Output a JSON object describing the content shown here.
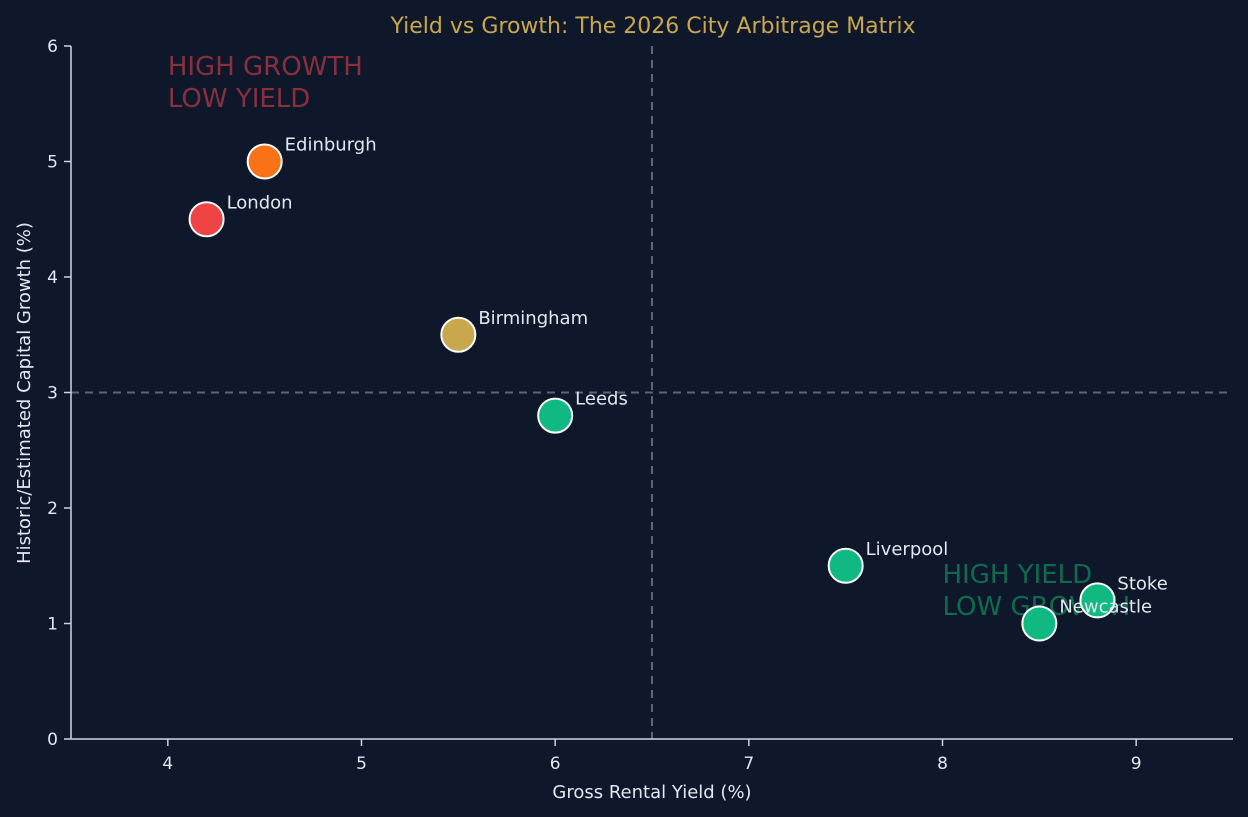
{
  "chart_data": {
    "type": "scatter",
    "title": "Yield vs Growth: The 2026 City Arbitrage Matrix",
    "xlabel": "Gross Rental Yield (%)",
    "ylabel": "Historic/Estimated Capital Growth (%)",
    "xlim": [
      3.5,
      9.5
    ],
    "ylim": [
      0,
      6
    ],
    "xticks": [
      4,
      5,
      6,
      7,
      8,
      9
    ],
    "yticks": [
      0,
      1,
      2,
      3,
      4,
      5,
      6
    ],
    "grid": false,
    "reference_lines": {
      "x": 6.5,
      "y": 3
    },
    "points": [
      {
        "label": "London",
        "x": 4.2,
        "y": 4.5,
        "color": "#ef4444"
      },
      {
        "label": "Edinburgh",
        "x": 4.5,
        "y": 5.0,
        "color": "#f97316"
      },
      {
        "label": "Birmingham",
        "x": 5.5,
        "y": 3.5,
        "color": "#c9a74c"
      },
      {
        "label": "Leeds",
        "x": 6.0,
        "y": 2.8,
        "color": "#10b981"
      },
      {
        "label": "Liverpool",
        "x": 7.5,
        "y": 1.5,
        "color": "#10b981"
      },
      {
        "label": "Stoke",
        "x": 8.8,
        "y": 1.2,
        "color": "#10b981"
      },
      {
        "label": "Newcastle",
        "x": 8.5,
        "y": 1.0,
        "color": "#10b981"
      }
    ],
    "annotations": [
      {
        "lines": [
          "HIGH GROWTH",
          "LOW YIELD"
        ],
        "x": 4.0,
        "y": 5.75,
        "color": "#8a2f3e"
      },
      {
        "lines": [
          "HIGH YIELD",
          "LOW GROWTH"
        ],
        "x": 8.0,
        "y": 1.35,
        "color": "#0f6b50"
      }
    ]
  },
  "colors": {
    "background": "#0f172a",
    "axis": "#cbd5e1",
    "text": "#e2e8f0",
    "title": "#c9a74c",
    "reference_line": "#5b6478",
    "marker_edge": "#ffffff"
  }
}
